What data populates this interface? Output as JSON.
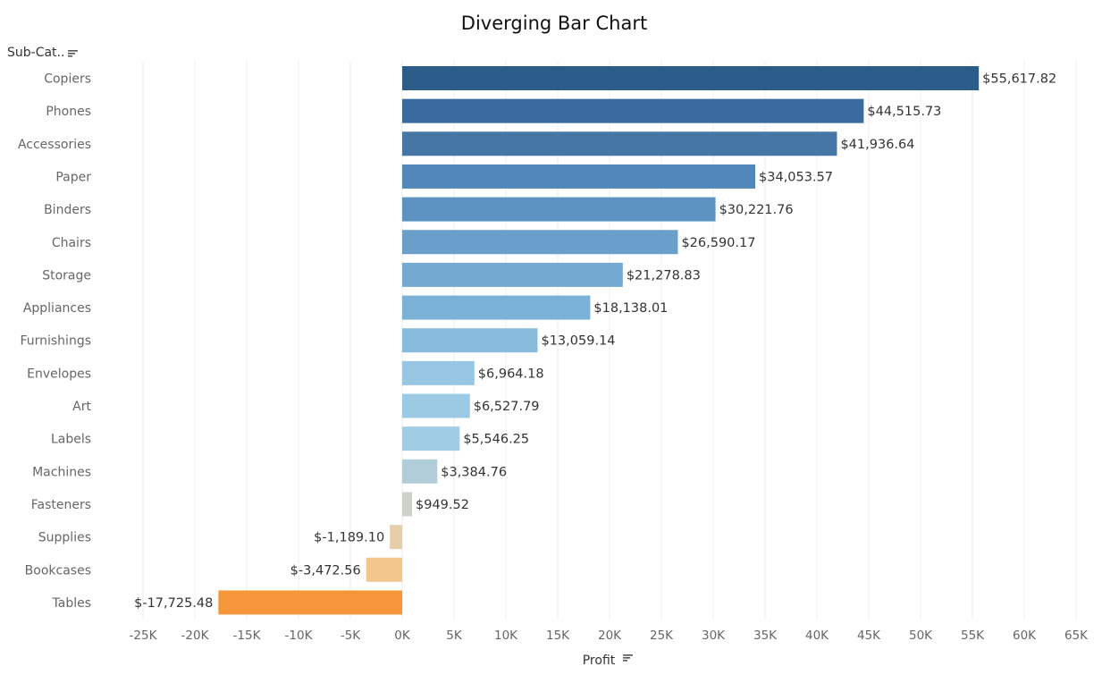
{
  "chart_data": {
    "type": "bar",
    "orientation": "horizontal",
    "title": "Diverging Bar Chart",
    "xlabel": "Profit",
    "ylabel": "Sub-Cat..",
    "xlim": [
      -25000,
      65000
    ],
    "x_ticks": [
      -25000,
      -20000,
      -15000,
      -10000,
      -5000,
      0,
      5000,
      10000,
      15000,
      20000,
      25000,
      30000,
      35000,
      40000,
      45000,
      50000,
      55000,
      60000,
      65000
    ],
    "x_tick_labels": [
      "-25K",
      "-20K",
      "-15K",
      "-10K",
      "-5K",
      "0K",
      "5K",
      "10K",
      "15K",
      "20K",
      "25K",
      "30K",
      "35K",
      "40K",
      "45K",
      "50K",
      "55K",
      "60K",
      "65K"
    ],
    "grid": "vertical",
    "categories": [
      "Copiers",
      "Phones",
      "Accessories",
      "Paper",
      "Binders",
      "Chairs",
      "Storage",
      "Appliances",
      "Furnishings",
      "Envelopes",
      "Art",
      "Labels",
      "Machines",
      "Fasteners",
      "Supplies",
      "Bookcases",
      "Tables"
    ],
    "values": [
      55617.82,
      44515.73,
      41936.64,
      34053.57,
      30221.76,
      26590.17,
      21278.83,
      18138.01,
      13059.14,
      6964.18,
      6527.79,
      5546.25,
      3384.76,
      949.52,
      -1189.1,
      -3472.56,
      -17725.48
    ],
    "value_labels": [
      "$55,617.82",
      "$44,515.73",
      "$41,936.64",
      "$34,053.57",
      "$30,221.76",
      "$26,590.17",
      "$21,278.83",
      "$18,138.01",
      "$13,059.14",
      "$6,964.18",
      "$6,527.79",
      "$5,546.25",
      "$3,384.76",
      "$949.52",
      "$-1,189.10",
      "$-3,472.56",
      "$-17,725.48"
    ],
    "colors": [
      "#2b5c8a",
      "#3a6b9e",
      "#4576a6",
      "#5288b9",
      "#5d93c2",
      "#6a9ecb",
      "#74a9d2",
      "#7ab1d7",
      "#88bcdd",
      "#97c7e3",
      "#9ccae5",
      "#a1cde4",
      "#b1cdd8",
      "#cfd2ca",
      "#e6cea9",
      "#f2c68c",
      "#f5963a"
    ]
  }
}
